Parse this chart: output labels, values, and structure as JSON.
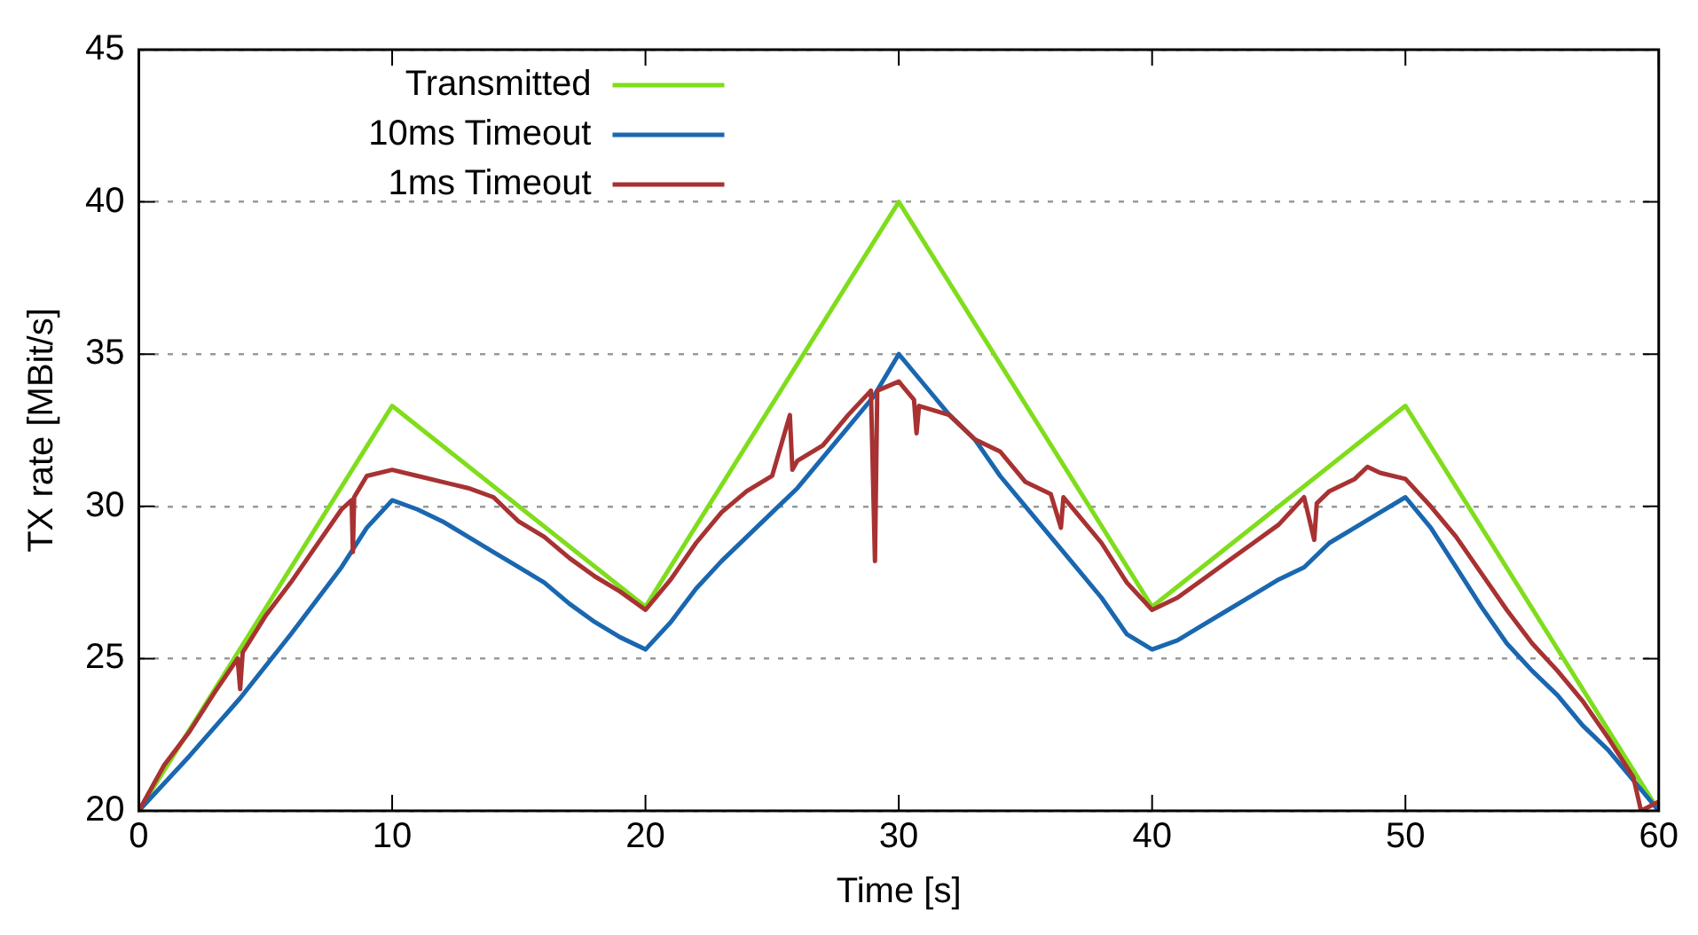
{
  "chart_data": {
    "type": "line",
    "xlabel": "Time [s]",
    "ylabel": "TX rate [MBit/s]",
    "xlim": [
      0,
      60
    ],
    "ylim": [
      20,
      45
    ],
    "xticks": [
      0,
      10,
      20,
      30,
      40,
      50,
      60
    ],
    "yticks": [
      20,
      25,
      30,
      35,
      40,
      45
    ],
    "grid": "y",
    "legend": "top left",
    "marker": "none",
    "line_style": "solid",
    "series": [
      {
        "name": "Transmitted",
        "color": "#7fdd1c",
        "x": [
          0,
          10,
          20,
          30,
          40,
          50,
          60
        ],
        "values": [
          20,
          33.3,
          26.7,
          40,
          26.7,
          33.3,
          20
        ]
      },
      {
        "name": "10ms Timeout",
        "color": "#1a67b0",
        "x": [
          0,
          2,
          4,
          6,
          8,
          9,
          10,
          11,
          12,
          13,
          14,
          15,
          16,
          17,
          18,
          19,
          20,
          21,
          22,
          23,
          24,
          25,
          26,
          27,
          28,
          29,
          30,
          31,
          32,
          33,
          34,
          35,
          36,
          37,
          38,
          39,
          40,
          41,
          42,
          43,
          44,
          45,
          46,
          47,
          48,
          49,
          50,
          51,
          52,
          53,
          54,
          55,
          56,
          57,
          58,
          59,
          60
        ],
        "values": [
          20,
          21.8,
          23.7,
          25.8,
          28,
          29.3,
          30.2,
          29.9,
          29.5,
          29,
          28.5,
          28,
          27.5,
          26.8,
          26.2,
          25.7,
          25.3,
          26.2,
          27.3,
          28.2,
          29,
          29.8,
          30.6,
          31.6,
          32.6,
          33.6,
          35,
          34,
          33,
          32.2,
          31,
          30,
          29,
          28,
          27,
          25.8,
          25.3,
          25.6,
          26.1,
          26.6,
          27.1,
          27.6,
          28,
          28.8,
          29.3,
          29.8,
          30.3,
          29.3,
          28,
          26.7,
          25.5,
          24.6,
          23.8,
          22.8,
          22,
          21,
          20
        ]
      },
      {
        "name": "1ms Timeout",
        "color": "#a83232",
        "x": [
          0,
          1,
          2,
          3,
          3.9,
          4,
          4.1,
          5,
          6,
          7,
          8,
          8.4,
          8.45,
          8.5,
          9,
          10,
          11,
          12,
          13,
          14,
          15,
          16,
          17,
          18,
          19,
          20,
          21,
          22,
          23,
          24,
          25,
          25.7,
          25.8,
          26,
          27,
          28,
          28.9,
          29.06,
          29.15,
          30,
          30.6,
          30.7,
          30.8,
          32,
          33,
          34,
          35,
          36,
          36.4,
          36.5,
          37,
          38,
          39,
          40,
          41,
          42,
          43,
          44,
          45,
          46,
          46.4,
          46.5,
          47,
          48,
          48.5,
          49,
          50,
          51,
          52,
          53,
          54,
          55,
          56,
          57,
          58,
          59,
          59.3,
          60
        ],
        "values": [
          20,
          21.5,
          22.6,
          23.9,
          25,
          24,
          25.2,
          26.4,
          27.5,
          28.7,
          29.9,
          30.2,
          28.5,
          30.3,
          31,
          31.2,
          31,
          30.8,
          30.6,
          30.3,
          29.5,
          29,
          28.3,
          27.7,
          27.2,
          26.6,
          27.6,
          28.8,
          29.8,
          30.5,
          31,
          33,
          31.2,
          31.5,
          32,
          33,
          33.8,
          28.2,
          33.8,
          34.1,
          33.5,
          32.4,
          33.3,
          33,
          32.2,
          31.8,
          30.8,
          30.4,
          29.3,
          30.3,
          29.8,
          28.8,
          27.5,
          26.6,
          27,
          27.6,
          28.2,
          28.8,
          29.4,
          30.3,
          28.9,
          30.1,
          30.5,
          30.9,
          31.3,
          31.1,
          30.9,
          30,
          29,
          27.8,
          26.6,
          25.5,
          24.6,
          23.6,
          22.4,
          21.1,
          20,
          20.3
        ]
      }
    ]
  }
}
